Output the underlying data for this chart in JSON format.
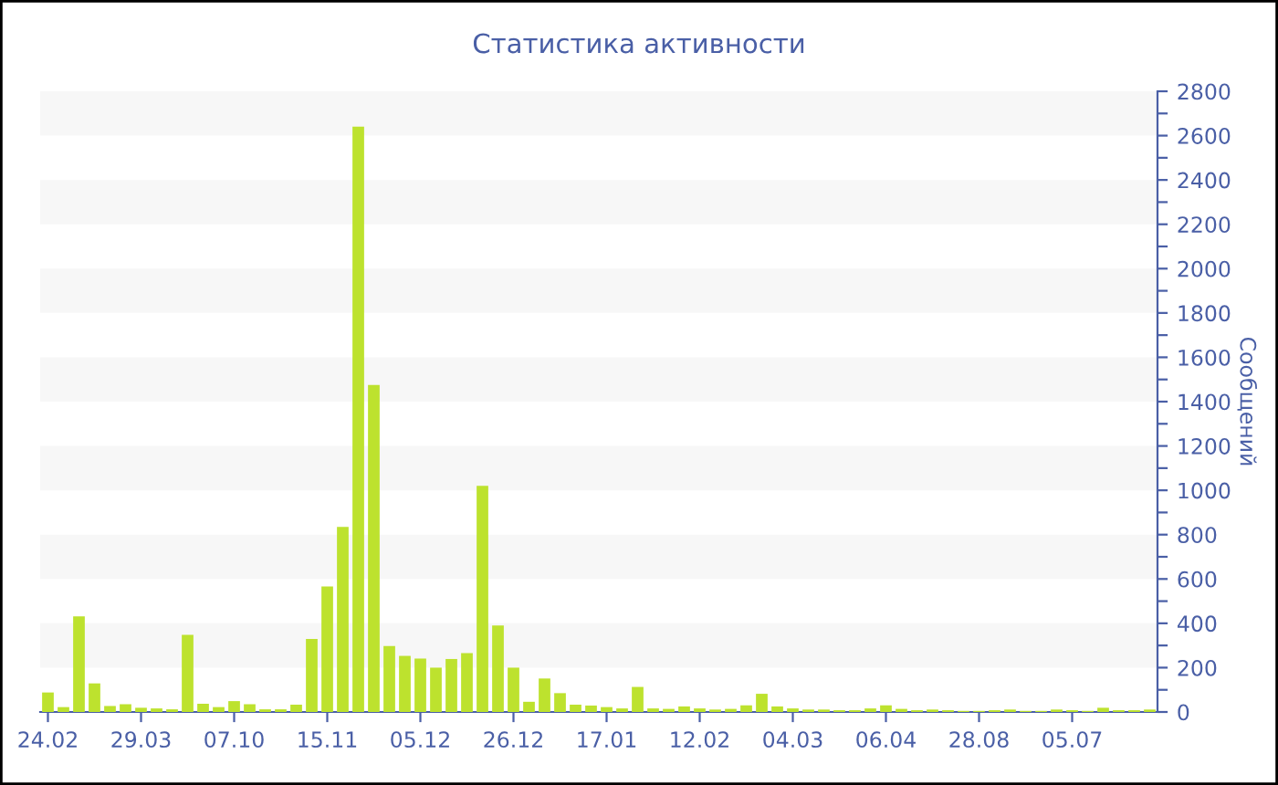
{
  "chart_data": {
    "type": "bar",
    "title": "Статистика активности",
    "ylabel": "Сообщений",
    "categories": [
      "24.02",
      null,
      null,
      null,
      null,
      null,
      "29.03",
      null,
      null,
      null,
      null,
      null,
      "07.10",
      null,
      null,
      null,
      null,
      null,
      "15.11",
      null,
      null,
      null,
      null,
      null,
      "05.12",
      null,
      null,
      null,
      null,
      null,
      "26.12",
      null,
      null,
      null,
      null,
      null,
      "17.01",
      null,
      null,
      null,
      null,
      null,
      "12.02",
      null,
      null,
      null,
      null,
      null,
      "04.03",
      null,
      null,
      null,
      null,
      null,
      "06.04",
      null,
      null,
      null,
      null,
      null,
      "28.08",
      null,
      null,
      null,
      null,
      null,
      "05.07",
      null,
      null,
      null,
      null,
      null
    ],
    "values": [
      88,
      22,
      431,
      129,
      27,
      35,
      19,
      16,
      12,
      348,
      37,
      22,
      49,
      35,
      12,
      12,
      33,
      329,
      566,
      835,
      2640,
      1475,
      297,
      253,
      241,
      200,
      239,
      266,
      1020,
      390,
      200,
      46,
      151,
      85,
      33,
      29,
      22,
      16,
      113,
      16,
      14,
      25,
      16,
      11,
      14,
      30,
      82,
      25,
      16,
      11,
      11,
      8,
      8,
      16,
      30,
      14,
      8,
      11,
      8,
      5,
      5,
      8,
      11,
      5,
      5,
      11,
      8,
      5,
      19,
      8,
      8,
      11
    ],
    "color": "#bde22e",
    "ylim": [
      0,
      2800
    ],
    "yticks": [
      0,
      {
        "value": 100,
        "label": null
      },
      200,
      {
        "value": 300,
        "label": null
      },
      400,
      {
        "value": 500,
        "label": null
      },
      600,
      {
        "value": 700,
        "label": null
      },
      800,
      {
        "value": 900,
        "label": null
      },
      1000,
      {
        "value": 1100,
        "label": null
      },
      1200,
      {
        "value": 1300,
        "label": null
      },
      1400,
      {
        "value": 1500,
        "label": null
      },
      1600,
      {
        "value": 1700,
        "label": null
      },
      1800,
      {
        "value": 1900,
        "label": null
      },
      2000,
      {
        "value": 2100,
        "label": null
      },
      2200,
      {
        "value": 2300,
        "label": null
      },
      2400,
      {
        "value": 2500,
        "label": null
      },
      2600,
      {
        "value": 2700,
        "label": null
      },
      2800
    ],
    "bands": [
      {
        "axis": "y",
        "from": 200,
        "to": 400,
        "color": "#f7f7f7"
      },
      {
        "axis": "y",
        "from": 600,
        "to": 800,
        "color": "#f7f7f7"
      },
      {
        "axis": "y",
        "from": 1000,
        "to": 1200,
        "color": "#f7f7f7"
      },
      {
        "axis": "y",
        "from": 1400,
        "to": 1600,
        "color": "#f7f7f7"
      },
      {
        "axis": "y",
        "from": 1800,
        "to": 2000,
        "color": "#f7f7f7"
      },
      {
        "axis": "y",
        "from": 2200,
        "to": 2400,
        "color": "#f7f7f7"
      },
      {
        "axis": "y",
        "from": 2600,
        "to": 2800,
        "color": "#f7f7f7"
      }
    ],
    "grid": false,
    "legend": false
  }
}
